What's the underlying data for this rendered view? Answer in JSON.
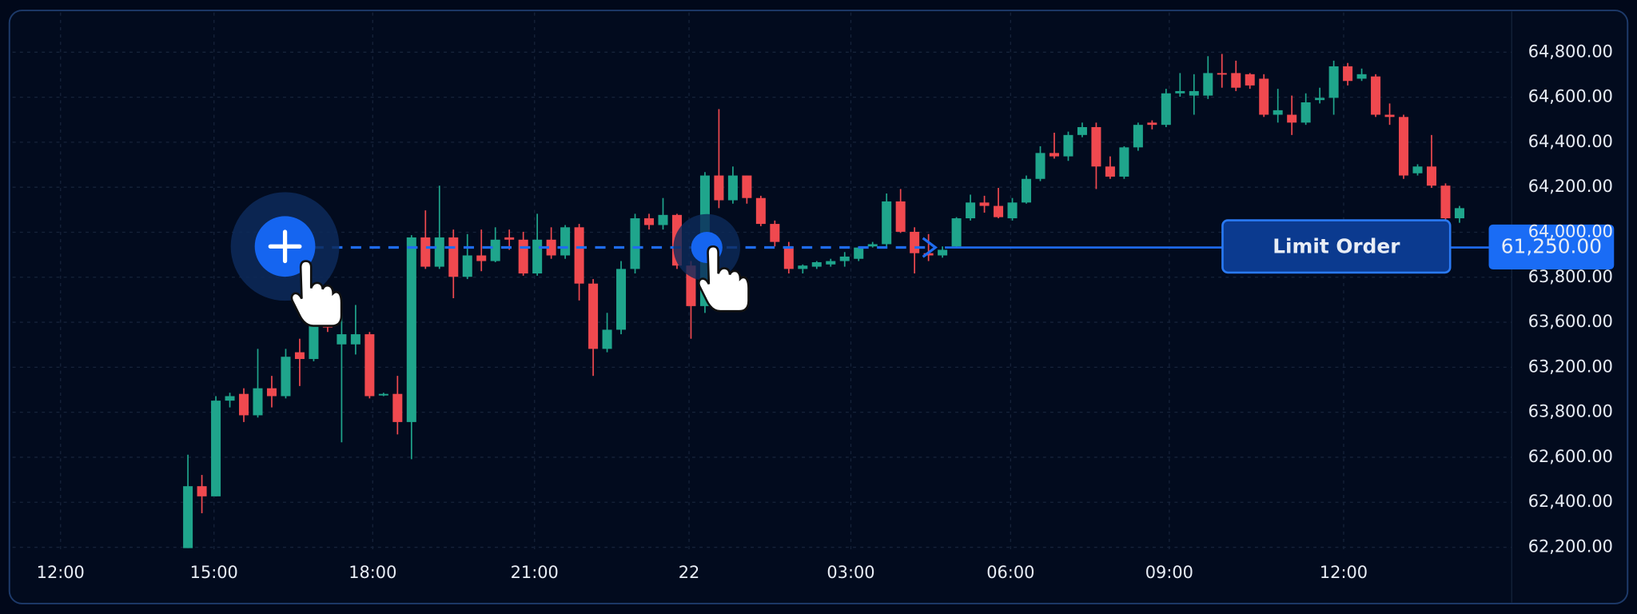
{
  "chart_data": {
    "type": "candlestick",
    "ylim": [
      62525,
      64960
    ],
    "colors": {
      "up": "#1fa58c",
      "down": "#f0494f"
    },
    "price_labels": [
      "64,800.00",
      "64,600.00",
      "64,400.00",
      "64,200.00",
      "64,000.00",
      "63,800.00",
      "63,600.00",
      "63,200.00",
      "63,800.00",
      "62,600.00",
      "62,400.00",
      "62,200.00"
    ],
    "time_labels": [
      "12:00",
      "15:00",
      "18:00",
      "21:00",
      "22",
      "03:00",
      "06:00",
      "09:00",
      "12:00"
    ],
    "candles": [
      [
        62595,
        63010,
        62595,
        62870
      ],
      [
        62870,
        62920,
        62750,
        62825
      ],
      [
        62825,
        63270,
        62825,
        63250
      ],
      [
        63250,
        63285,
        63220,
        63270
      ],
      [
        63280,
        63305,
        63155,
        63185
      ],
      [
        63185,
        63480,
        63175,
        63305
      ],
      [
        63305,
        63360,
        63220,
        63270
      ],
      [
        63270,
        63480,
        63260,
        63445
      ],
      [
        63465,
        63525,
        63315,
        63435
      ],
      [
        63435,
        63685,
        63425,
        63595
      ],
      [
        63605,
        63640,
        63555,
        63575
      ],
      [
        63500,
        63640,
        63065,
        63545
      ],
      [
        63500,
        63675,
        63455,
        63545
      ],
      [
        63545,
        63555,
        63260,
        63270
      ],
      [
        63280,
        63285,
        63270,
        63280
      ],
      [
        63280,
        63360,
        63100,
        63155
      ],
      [
        63155,
        63985,
        62990,
        63975
      ],
      [
        63975,
        64095,
        63835,
        63845
      ],
      [
        63845,
        64205,
        63835,
        63975
      ],
      [
        63975,
        64010,
        63705,
        63800
      ],
      [
        63800,
        63990,
        63790,
        63895
      ],
      [
        63895,
        64010,
        63825,
        63870
      ],
      [
        63870,
        64020,
        63865,
        63965
      ],
      [
        63975,
        64010,
        63920,
        63965
      ],
      [
        63965,
        64000,
        63805,
        63815
      ],
      [
        63815,
        64080,
        63805,
        63965
      ],
      [
        63965,
        64020,
        63880,
        63895
      ],
      [
        63895,
        64030,
        63880,
        64020
      ],
      [
        64020,
        64035,
        63695,
        63770
      ],
      [
        63770,
        63790,
        63360,
        63480
      ],
      [
        63480,
        63640,
        63465,
        63565
      ],
      [
        63565,
        63870,
        63545,
        63835
      ],
      [
        63835,
        64080,
        63815,
        64060
      ],
      [
        64060,
        64080,
        64010,
        64030
      ],
      [
        64030,
        64150,
        64010,
        64075
      ],
      [
        64075,
        64080,
        63835,
        63850
      ],
      [
        63850,
        63870,
        63525,
        63670
      ],
      [
        63670,
        64265,
        63640,
        64250
      ],
      [
        64250,
        64545,
        64105,
        64140
      ],
      [
        64140,
        64290,
        64125,
        64250
      ],
      [
        64250,
        64250,
        64125,
        64150
      ],
      [
        64150,
        64160,
        64025,
        64035
      ],
      [
        64035,
        64050,
        63935,
        63955
      ],
      [
        63935,
        63955,
        63815,
        63835
      ],
      [
        63835,
        63855,
        63815,
        63850
      ],
      [
        63845,
        63870,
        63835,
        63865
      ],
      [
        63855,
        63880,
        63845,
        63870
      ],
      [
        63870,
        63910,
        63845,
        63890
      ],
      [
        63880,
        63935,
        63870,
        63930
      ],
      [
        63935,
        63955,
        63930,
        63945
      ],
      [
        63945,
        64170,
        63935,
        64135
      ],
      [
        64135,
        64190,
        63995,
        64000
      ],
      [
        64000,
        64020,
        63815,
        63905
      ],
      [
        63905,
        63990,
        63870,
        63895
      ],
      [
        63895,
        63935,
        63885,
        63920
      ],
      [
        63935,
        64065,
        63930,
        64060
      ],
      [
        64060,
        64165,
        64050,
        64130
      ],
      [
        64130,
        64160,
        64085,
        64115
      ],
      [
        64115,
        64195,
        64060,
        64065
      ],
      [
        64060,
        64150,
        64050,
        64130
      ],
      [
        64130,
        64250,
        64125,
        64235
      ],
      [
        64235,
        64380,
        64225,
        64350
      ],
      [
        64350,
        64440,
        64325,
        64335
      ],
      [
        64335,
        64445,
        64315,
        64430
      ],
      [
        64430,
        64485,
        64420,
        64465
      ],
      [
        64465,
        64485,
        64190,
        64290
      ],
      [
        64290,
        64335,
        64235,
        64245
      ],
      [
        64245,
        64380,
        64235,
        64375
      ],
      [
        64375,
        64485,
        64360,
        64475
      ],
      [
        64485,
        64495,
        64455,
        64475
      ],
      [
        64475,
        64635,
        64465,
        64615
      ],
      [
        64615,
        64705,
        64600,
        64625
      ],
      [
        64605,
        64700,
        64520,
        64625
      ],
      [
        64605,
        64780,
        64590,
        64705
      ],
      [
        64705,
        64790,
        64640,
        64700
      ],
      [
        64705,
        64760,
        64625,
        64640
      ],
      [
        64700,
        64705,
        64635,
        64650
      ],
      [
        64680,
        64700,
        64510,
        64520
      ],
      [
        64520,
        64635,
        64485,
        64540
      ],
      [
        64520,
        64605,
        64430,
        64485
      ],
      [
        64485,
        64615,
        64475,
        64575
      ],
      [
        64585,
        64640,
        64570,
        64595
      ],
      [
        64595,
        64760,
        64520,
        64735
      ],
      [
        64735,
        64750,
        64650,
        64670
      ],
      [
        64680,
        64725,
        64670,
        64700
      ],
      [
        64690,
        64700,
        64510,
        64520
      ],
      [
        64520,
        64570,
        64475,
        64510
      ],
      [
        64510,
        64520,
        64235,
        64250
      ],
      [
        64260,
        64300,
        64250,
        64290
      ],
      [
        64290,
        64430,
        64195,
        64205
      ],
      [
        64205,
        64215,
        64050,
        64060
      ],
      [
        64060,
        64115,
        64040,
        64105
      ]
    ]
  },
  "order": {
    "button": "Limit Order",
    "price": "61,250.00"
  }
}
